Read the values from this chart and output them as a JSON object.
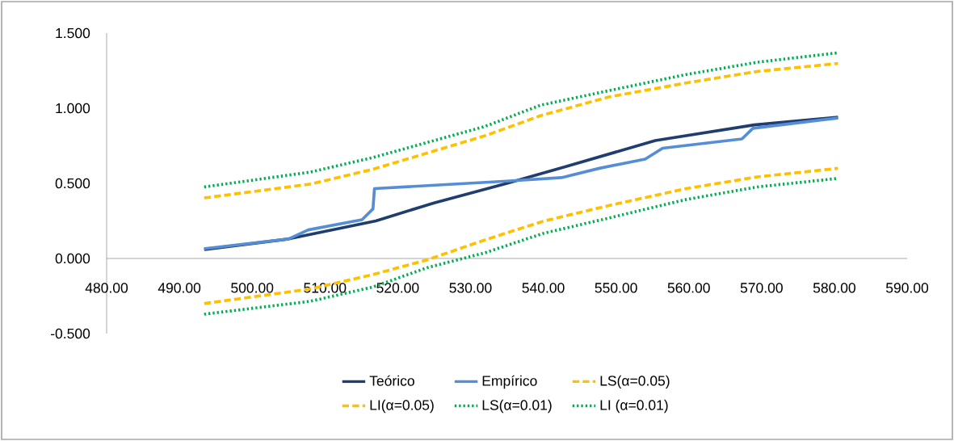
{
  "chart_data": {
    "type": "line",
    "legend": "bottom",
    "xlim": [
      480,
      590
    ],
    "ylim": [
      -0.5,
      1.5
    ],
    "xticks": [
      {
        "value": 480,
        "label": "480.00"
      },
      {
        "value": 490,
        "label": "490.00"
      },
      {
        "value": 500,
        "label": "500.00"
      },
      {
        "value": 510,
        "label": "510.00"
      },
      {
        "value": 520,
        "label": "520.00"
      },
      {
        "value": 530,
        "label": "530.00"
      },
      {
        "value": 540,
        "label": "540.00"
      },
      {
        "value": 550,
        "label": "550.00"
      },
      {
        "value": 560,
        "label": "560.00"
      },
      {
        "value": 570,
        "label": "570.00"
      },
      {
        "value": 580,
        "label": "580.00"
      },
      {
        "value": 590,
        "label": "590.00"
      }
    ],
    "yticks": [
      {
        "value": -0.5,
        "label": "-0.500"
      },
      {
        "value": 0,
        "label": "0.000"
      },
      {
        "value": 0.5,
        "label": "0.500"
      },
      {
        "value": 1,
        "label": "1.000"
      },
      {
        "value": 1.5,
        "label": "1.500"
      }
    ],
    "series": [
      {
        "name": "Teórico",
        "color": "#1f3d6e",
        "line_style": "solid",
        "x": [
          493.4,
          505,
          517,
          525,
          535,
          543,
          555.4,
          569,
          580.5
        ],
        "values": [
          0.059,
          0.13,
          0.25,
          0.37,
          0.5,
          0.61,
          0.785,
          0.889,
          0.94
        ]
      },
      {
        "name": "Empírico",
        "color": "#558ed5",
        "line_style": "solid",
        "x": [
          493.4,
          505,
          507.7,
          515.1,
          516.6,
          516.8,
          535,
          542.5,
          547.7,
          554.0,
          556.4,
          567.3,
          568.8,
          580.5
        ],
        "values": [
          0.065,
          0.13,
          0.19,
          0.258,
          0.33,
          0.465,
          0.515,
          0.538,
          0.6,
          0.661,
          0.734,
          0.796,
          0.866,
          0.935
        ]
      },
      {
        "name": "LS(α=0.05)",
        "color": "#ffc000",
        "line_style": "dashed",
        "x": [
          493.4,
          508.1,
          516.6,
          532,
          539.6,
          549,
          559.6,
          569.4,
          580.5
        ],
        "values": [
          0.403,
          0.496,
          0.594,
          0.817,
          0.95,
          1.075,
          1.168,
          1.245,
          1.298
        ]
      },
      {
        "name": "LI(α=0.05)",
        "color": "#ffc000",
        "line_style": "dashed",
        "x": [
          493.4,
          508,
          516.6,
          524,
          532,
          540,
          549,
          559.6,
          569.4,
          580.5
        ],
        "values": [
          -0.3,
          -0.203,
          -0.107,
          -0.01,
          0.124,
          0.248,
          0.352,
          0.465,
          0.543,
          0.6
        ]
      },
      {
        "name": "LS(α=0.01)",
        "color": "#00b050",
        "line_style": "dotted",
        "x": [
          493.4,
          508,
          516.6,
          532,
          539.6,
          549,
          559.6,
          569.4,
          580.5
        ],
        "values": [
          0.476,
          0.575,
          0.672,
          0.879,
          1.02,
          1.117,
          1.224,
          1.306,
          1.369
        ]
      },
      {
        "name": "LI (α=0.01)",
        "color": "#00b050",
        "line_style": "dotted",
        "x": [
          493.4,
          508,
          516.6,
          524,
          532,
          540,
          549,
          559.6,
          569.4,
          580.5
        ],
        "values": [
          -0.371,
          -0.285,
          -0.19,
          -0.062,
          0.038,
          0.167,
          0.269,
          0.392,
          0.476,
          0.533
        ]
      }
    ]
  }
}
